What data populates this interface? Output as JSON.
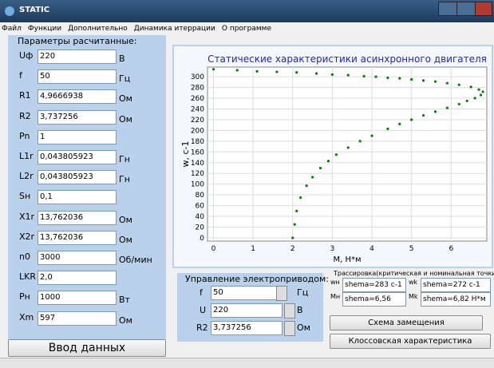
{
  "window": {
    "title": "STATIC"
  },
  "menu": [
    "Файл",
    "Функции",
    "Дополнительно",
    "Динамика итеррации",
    "О программе"
  ],
  "params": {
    "title": "Параметры расчитанные:",
    "rows": [
      {
        "label": "Uф",
        "value": "220",
        "unit": "В"
      },
      {
        "label": "f",
        "value": "50",
        "unit": "Гц"
      },
      {
        "label": "R1",
        "value": "4,9666938",
        "unit": "Ом"
      },
      {
        "label": "R2",
        "value": "3,737256",
        "unit": "Ом"
      },
      {
        "label": "Pn",
        "value": "1"
      },
      {
        "label": "L1r",
        "value": "0,043805923",
        "unit": "Гн"
      },
      {
        "label": "L2r",
        "value": "0,043805923",
        "unit": "Гн"
      },
      {
        "label": "Sн",
        "value": "0,1"
      },
      {
        "label": "X1r",
        "value": "13,762036",
        "unit": "Ом"
      },
      {
        "label": "X2r",
        "value": "13,762036",
        "unit": "Ом"
      },
      {
        "label": "n0",
        "value": "3000",
        "unit": "Об/мин"
      },
      {
        "label": "LKR",
        "value": "2,0"
      },
      {
        "label": "Pн",
        "value": "1000",
        "unit": "Вт"
      },
      {
        "label": "Xm",
        "value": "597",
        "unit": "Ом"
      }
    ]
  },
  "input_button": "Ввод данных",
  "chart": {
    "type": "scatter",
    "title": "Статические характеристики асинхронного двигателя",
    "x_label": "M, H*м",
    "y_label": "w, c-1",
    "color": "#008000",
    "x": [
      0,
      0.6,
      1.1,
      1.6,
      2.1,
      2.6,
      3.0,
      3.4,
      3.8,
      4.1,
      4.4,
      4.7,
      5.0,
      5.3,
      5.6,
      5.9,
      6.2,
      6.5,
      6.7,
      6.8,
      6.75,
      6.6,
      6.4,
      6.2,
      5.9,
      5.6,
      5.3,
      5.0,
      4.7,
      4.4,
      4.0,
      3.7,
      3.4,
      3.1,
      2.9,
      2.7,
      2.5,
      2.35,
      2.2,
      2.1,
      2.05,
      2.0
    ],
    "y": [
      314,
      312,
      310,
      309,
      308,
      306,
      304,
      303,
      301,
      300,
      298,
      297,
      295,
      293,
      291,
      288,
      285,
      281,
      276,
      272,
      266,
      260,
      255,
      249,
      242,
      235,
      228,
      220,
      212,
      203,
      190,
      180,
      168,
      155,
      143,
      130,
      113,
      97,
      75,
      50,
      25,
      0
    ],
    "xlim": [
      -0.15,
      6.9
    ],
    "ylim": [
      -6,
      318
    ],
    "xticks": [
      0,
      1,
      2,
      3,
      4,
      5,
      6
    ],
    "yticks": [
      0,
      20,
      40,
      60,
      80,
      100,
      120,
      140,
      160,
      180,
      200,
      220,
      240,
      260,
      280,
      300
    ]
  },
  "control": {
    "title": "Управление электроприводом:",
    "rows": [
      {
        "label": "f",
        "value": "50",
        "unit": "Гц"
      },
      {
        "label": "U",
        "value": "220",
        "unit": "В"
      },
      {
        "label": "R2",
        "value": "3,737256",
        "unit": "Ом"
      }
    ]
  },
  "trace": {
    "title": "Трассировка(критическая и номинальная точки)",
    "fields": [
      {
        "label": "wн",
        "value": "shema=283 c-1"
      },
      {
        "label": "wk",
        "value": "shema=272 c-1"
      },
      {
        "label": "Mн",
        "value": "shema=6,56 H*м"
      },
      {
        "label": "Mk",
        "value": "shema=6,82 H*м"
      }
    ],
    "buttons": [
      "Схема замещения",
      "Клоссовская характеристика"
    ]
  }
}
